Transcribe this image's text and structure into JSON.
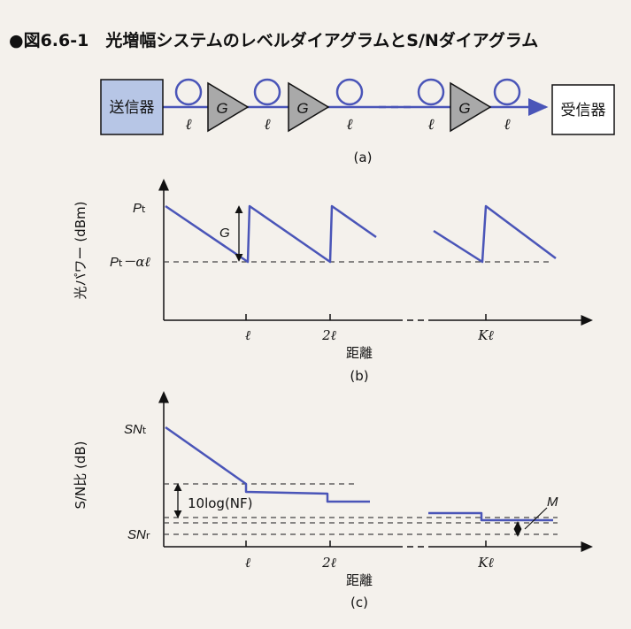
{
  "title": "●図6.6-1　光増幅システムのレベルダイアグラムとS/Nダイアグラム",
  "colors": {
    "accent": "#4a55b8",
    "transmitter_fill": "#b7c6e6",
    "amp_fill": "#a9a9a9",
    "dash": "#444444"
  },
  "panel_a": {
    "transmitter": "送信器",
    "receiver": "受信器",
    "amp_label": "G",
    "span_label": "ℓ",
    "caption": "(a)"
  },
  "panel_b": {
    "ylabel": "光パワー (dBm)",
    "xlabel": "距離",
    "y_label_top_main": "P",
    "y_label_top_sub": "t",
    "y_label_bottom_main": "P",
    "y_label_bottom_sub": "t",
    "y_label_bottom_tail": "－αℓ",
    "gain_label": "G",
    "ticks": [
      "ℓ",
      "2ℓ",
      "Kℓ"
    ],
    "caption": "(b)"
  },
  "panel_c": {
    "ylabel": "S/N比 (dB)",
    "xlabel": "距離",
    "y_label_top_main": "SN",
    "y_label_top_sub": "t",
    "y_label_bottom_main": "SN",
    "y_label_bottom_sub": "r",
    "nf_label": "10log(NF)",
    "margin_label": "M",
    "ticks": [
      "ℓ",
      "2ℓ",
      "Kℓ"
    ],
    "caption": "(c)"
  }
}
